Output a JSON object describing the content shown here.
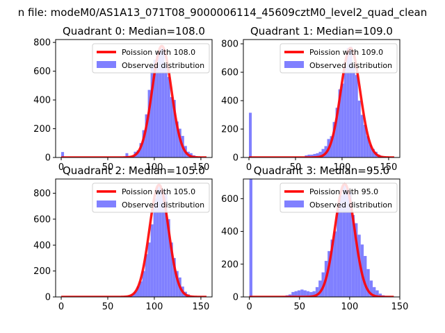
{
  "figure_title": "n file: modeM0/AS1A13_071T08_9000006114_45609cztM0_level2_quad_clean",
  "colors": {
    "observed": "#8080ff",
    "poisson": "#ff0000",
    "axis": "#000000"
  },
  "chart_data": [
    {
      "type": "bar",
      "title": "Quadrant 0: Median=108.0",
      "xlim": [
        -6,
        162
      ],
      "ylim": [
        0,
        820
      ],
      "xticks": [
        0,
        50,
        100,
        150
      ],
      "yticks": [
        0,
        200,
        400,
        600,
        800
      ],
      "bin_width": 3,
      "legend": {
        "placement": "upper right",
        "poisson_label": "Poission with 108.0",
        "observed_label": "Observed distribution"
      },
      "poisson": {
        "mean": 108,
        "peak": 775
      },
      "x": [
        0,
        3,
        6,
        9,
        12,
        15,
        18,
        21,
        24,
        27,
        30,
        33,
        36,
        39,
        42,
        45,
        48,
        51,
        54,
        57,
        60,
        63,
        66,
        69,
        72,
        75,
        78,
        81,
        84,
        87,
        90,
        93,
        96,
        99,
        102,
        105,
        108,
        111,
        114,
        117,
        120,
        123,
        126,
        129,
        132,
        135,
        138,
        141,
        144,
        147,
        150,
        153
      ],
      "values": [
        38,
        0,
        0,
        0,
        0,
        0,
        0,
        0,
        0,
        0,
        0,
        0,
        0,
        0,
        0,
        0,
        0,
        0,
        0,
        0,
        3,
        5,
        5,
        30,
        10,
        10,
        40,
        50,
        100,
        190,
        300,
        470,
        640,
        680,
        730,
        760,
        760,
        650,
        560,
        420,
        400,
        250,
        200,
        150,
        80,
        40,
        30,
        15,
        8,
        5,
        3,
        2
      ]
    },
    {
      "type": "bar",
      "title": "Quadrant 1: Median=109.0",
      "xlim": [
        -6,
        162
      ],
      "ylim": [
        0,
        830
      ],
      "xticks": [
        0,
        50,
        100,
        150
      ],
      "yticks": [
        0,
        200,
        400,
        600,
        800
      ],
      "bin_width": 3,
      "legend": {
        "placement": "upper right",
        "poisson_label": "Poission with 109.0",
        "observed_label": "Observed distribution"
      },
      "poisson": {
        "mean": 109,
        "peak": 770
      },
      "x": [
        0,
        3,
        6,
        9,
        12,
        15,
        18,
        21,
        24,
        27,
        30,
        33,
        36,
        39,
        42,
        45,
        48,
        51,
        54,
        57,
        60,
        63,
        66,
        69,
        72,
        75,
        78,
        81,
        84,
        87,
        90,
        93,
        96,
        99,
        102,
        105,
        108,
        111,
        114,
        117,
        120,
        123,
        126,
        129,
        132,
        135,
        138,
        141,
        144,
        147,
        150,
        153
      ],
      "values": [
        315,
        0,
        0,
        0,
        0,
        0,
        0,
        0,
        0,
        0,
        0,
        0,
        0,
        0,
        0,
        0,
        0,
        0,
        0,
        0,
        15,
        20,
        20,
        25,
        30,
        40,
        60,
        80,
        130,
        150,
        250,
        350,
        480,
        520,
        640,
        770,
        780,
        640,
        580,
        400,
        300,
        230,
        150,
        90,
        60,
        40,
        20,
        10,
        5,
        3,
        2,
        1
      ]
    },
    {
      "type": "bar",
      "title": "Quadrant 2: Median=105.0",
      "xlim": [
        -6,
        162
      ],
      "ylim": [
        0,
        910
      ],
      "xticks": [
        0,
        50,
        100,
        150
      ],
      "yticks": [
        0,
        200,
        400,
        600,
        800
      ],
      "bin_width": 3,
      "legend": {
        "placement": "upper right",
        "poisson_label": "Poission with 105.0",
        "observed_label": "Observed distribution"
      },
      "poisson": {
        "mean": 105,
        "peak": 865
      },
      "x": [
        0,
        3,
        6,
        9,
        12,
        15,
        18,
        21,
        24,
        27,
        30,
        33,
        36,
        39,
        42,
        45,
        48,
        51,
        54,
        57,
        60,
        63,
        66,
        69,
        72,
        75,
        78,
        81,
        84,
        87,
        90,
        93,
        96,
        99,
        102,
        105,
        108,
        111,
        114,
        117,
        120,
        123,
        126,
        129,
        132,
        135,
        138,
        141,
        144,
        147,
        150,
        153
      ],
      "values": [
        0,
        0,
        0,
        0,
        0,
        0,
        0,
        0,
        0,
        0,
        0,
        0,
        0,
        0,
        0,
        0,
        0,
        0,
        0,
        0,
        0,
        0,
        0,
        5,
        10,
        20,
        40,
        80,
        120,
        200,
        330,
        420,
        560,
        760,
        850,
        860,
        830,
        800,
        600,
        420,
        300,
        200,
        150,
        80,
        40,
        20,
        10,
        5,
        3,
        2,
        1,
        0
      ]
    },
    {
      "type": "bar",
      "title": "Quadrant 3: Median=95.0",
      "xlim": [
        -6,
        150
      ],
      "ylim": [
        0,
        720
      ],
      "xticks": [
        0,
        50,
        100,
        150
      ],
      "yticks": [
        0,
        200,
        400,
        600
      ],
      "bin_width": 3,
      "legend": {
        "placement": "upper right",
        "poisson_label": "Poission with 95.0",
        "observed_label": "Observed distribution"
      },
      "poisson": {
        "mean": 95,
        "peak": 690
      },
      "x": [
        0,
        3,
        6,
        9,
        12,
        15,
        18,
        21,
        24,
        27,
        30,
        33,
        36,
        39,
        42,
        45,
        48,
        51,
        54,
        57,
        60,
        63,
        66,
        69,
        72,
        75,
        78,
        81,
        84,
        87,
        90,
        93,
        96,
        99,
        102,
        105,
        108,
        111,
        114,
        117,
        120,
        123,
        126,
        129,
        132,
        135,
        138,
        141
      ],
      "values": [
        720,
        0,
        0,
        0,
        0,
        0,
        0,
        0,
        0,
        0,
        3,
        5,
        10,
        15,
        30,
        35,
        40,
        45,
        40,
        35,
        30,
        35,
        60,
        100,
        150,
        220,
        280,
        350,
        400,
        540,
        620,
        680,
        660,
        640,
        500,
        450,
        380,
        320,
        250,
        170,
        100,
        60,
        40,
        20,
        10,
        5,
        3,
        1
      ]
    }
  ]
}
